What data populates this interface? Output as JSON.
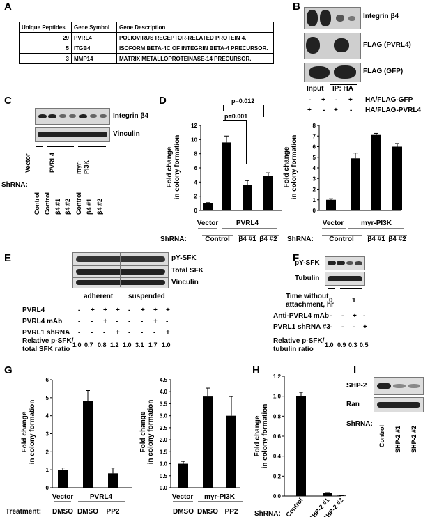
{
  "panels": {
    "A": "A",
    "B": "B",
    "C": "C",
    "D": "D",
    "E": "E",
    "F": "F",
    "G": "G",
    "H": "H",
    "I": "I"
  },
  "panelA": {
    "headers": [
      "Unique Peptides",
      "Gene Symbol",
      "Gene Description"
    ],
    "rows": [
      [
        "29",
        "PVRL4",
        "POLIOVIRUS RECEPTOR-RELATED PROTEIN 4."
      ],
      [
        "5",
        "ITGB4",
        "ISOFORM BETA-4C OF INTEGRIN BETA-4 PRECURSOR."
      ],
      [
        "3",
        "MMP14",
        "MATRIX METALLOPROTEINASE-14 PRECURSOR."
      ]
    ]
  },
  "panelB": {
    "blot_labels": [
      "Integrin β4",
      "FLAG (PVRL4)",
      "FLAG (GFP)"
    ],
    "input_label": "Input",
    "ip_label": "IP: HA",
    "row1_label": "HA/FLAG-GFP",
    "row2_label": "HA/FLAG-PVRL4",
    "row1_signs": [
      "-",
      "+",
      "-",
      "+"
    ],
    "row2_signs": [
      "+",
      "-",
      "+",
      "-"
    ]
  },
  "panelC": {
    "blot_labels": [
      "Integrin β4",
      "Vinculin"
    ],
    "groups": [
      "Vector",
      "PVRL4",
      "myr-\nPI3K"
    ],
    "shrna_label": "ShRNA:",
    "lanes": [
      "Control",
      "Control",
      "β4 #1",
      "β4 #2",
      "Control",
      "β4 #1",
      "β4 #2"
    ]
  },
  "panelE": {
    "blot_labels": [
      "pY-SFK",
      "Total SFK",
      "Vinculin"
    ],
    "adherent": "adherent",
    "suspended": "suspended",
    "rows": [
      {
        "label": "PVRL4",
        "values": [
          "-",
          "+",
          "+",
          "+",
          "-",
          "+",
          "+",
          "+"
        ]
      },
      {
        "label": "PVRL4 mAb",
        "values": [
          "-",
          "-",
          "+",
          "-",
          "-",
          "-",
          "+",
          "-"
        ]
      },
      {
        "label": "PVRL1 shRNA",
        "values": [
          "-",
          "-",
          "-",
          "+",
          "-",
          "-",
          "-",
          "+"
        ]
      }
    ],
    "ratio_label_1": "Relative p-SFK/",
    "ratio_label_2": "total SFK ratio",
    "ratios": [
      "1.0",
      "0.7",
      "0.8",
      "1.2",
      "1.0",
      "3.1",
      "1.7",
      "1.0"
    ]
  },
  "panelF": {
    "blot_labels": [
      "pY-SFK",
      "Tubulin"
    ],
    "time_label_1": "Time without",
    "time_label_2": "attachment, hr",
    "time_values": [
      "0",
      "1"
    ],
    "rows": [
      {
        "label": "Anti-PVRL4 mAb",
        "values": [
          "-",
          "-",
          "+",
          "-"
        ]
      },
      {
        "label": "PVRL1 shRNA #3",
        "values": [
          "-",
          "-",
          "-",
          "+"
        ]
      }
    ],
    "ratio_label_1": "Relative p-SFK/",
    "ratio_label_2": "tubulin ratio",
    "ratios": [
      "1.0",
      "0.9",
      "0.3",
      "0.5"
    ]
  },
  "panelI": {
    "blot_labels": [
      "SHP-2",
      "Ran"
    ],
    "shrna_label": "ShRNA:",
    "lanes": [
      "Control",
      "SHP-2 #1",
      "SHP-2 #2"
    ]
  },
  "annotations": {
    "p1": "p=0.012",
    "p2": "p=0.001"
  },
  "chart_data": [
    {
      "id": "D-left",
      "type": "bar",
      "ylabel": "Fold change\nin colony formation",
      "ylim": [
        0,
        12
      ],
      "yticks": [
        0,
        2,
        4,
        6,
        8,
        10,
        12
      ],
      "categories": [
        "Vector",
        "Control",
        "β4 #1",
        "β4 #2"
      ],
      "values": [
        1.0,
        9.6,
        3.6,
        4.9
      ],
      "errors": [
        0.1,
        0.9,
        0.6,
        0.4
      ],
      "groups": [
        "Vector",
        "PVRL4"
      ],
      "shrna_label": "ShRNA:",
      "shrna": [
        "Control",
        "β4 #1",
        "β4 #2"
      ]
    },
    {
      "id": "D-right",
      "type": "bar",
      "ylabel": "Fold change\nin colony formation",
      "ylim": [
        0,
        8
      ],
      "yticks": [
        0,
        1,
        2,
        3,
        4,
        5,
        6,
        7,
        8
      ],
      "categories": [
        "Vector",
        "Control",
        "β4 #1",
        "β4 #2"
      ],
      "values": [
        1.0,
        4.9,
        7.1,
        6.0
      ],
      "errors": [
        0.1,
        0.5,
        0.15,
        0.3
      ],
      "groups": [
        "Vector",
        "myr-PI3K"
      ],
      "shrna_label": "ShRNA:",
      "shrna": [
        "Control",
        "β4 #1",
        "β4 #2"
      ]
    },
    {
      "id": "G-left",
      "type": "bar",
      "ylabel": "Fold change\nin colony formation",
      "ylim": [
        0,
        6
      ],
      "yticks": [
        0,
        1,
        2,
        3,
        4,
        5,
        6
      ],
      "categories": [
        "DMSO",
        "DMSO",
        "PP2"
      ],
      "values": [
        1.0,
        4.8,
        0.8
      ],
      "errors": [
        0.1,
        0.6,
        0.3
      ],
      "groups": [
        "Vector",
        "PVRL4"
      ],
      "treatment_label": "Treatment:"
    },
    {
      "id": "G-right",
      "type": "bar",
      "ylabel": "Fold change\nin colony formation",
      "ylim": [
        0,
        4.5
      ],
      "yticks": [
        0,
        0.5,
        1,
        1.5,
        2,
        2.5,
        3,
        3.5,
        4,
        4.5
      ],
      "categories": [
        "DMSO",
        "DMSO",
        "PP2"
      ],
      "values": [
        1.0,
        3.8,
        3.0
      ],
      "errors": [
        0.1,
        0.35,
        0.8
      ],
      "groups": [
        "Vector",
        "myr-PI3K"
      ]
    },
    {
      "id": "H",
      "type": "bar",
      "ylabel": "Fold change\nin colony formation",
      "ylim": [
        0,
        1.2
      ],
      "yticks": [
        0,
        0.2,
        0.4,
        0.6,
        0.8,
        1.0,
        1.2
      ],
      "categories": [
        "Control",
        "SHP-2 #1",
        "SHP-2 #2"
      ],
      "values": [
        1.0,
        0.03,
        0.005
      ],
      "errors": [
        0.04,
        0.005,
        0.002
      ],
      "shrna_label": "ShRNA:"
    }
  ]
}
